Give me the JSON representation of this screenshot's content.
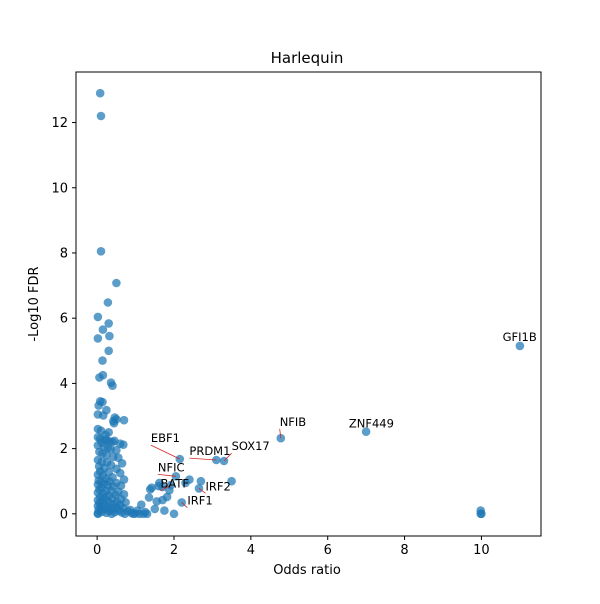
{
  "chart_data": {
    "type": "scatter",
    "title": "Harlequin",
    "xlabel": "Odds ratio",
    "ylabel": "-Log10 FDR",
    "xlim": [
      -0.55,
      11.55
    ],
    "ylim": [
      -0.68,
      13.55
    ],
    "xticks": [
      0,
      2,
      4,
      6,
      8,
      10
    ],
    "yticks": [
      0,
      2,
      4,
      6,
      8,
      10,
      12
    ],
    "grid": false,
    "marker_color": "#1f77b4",
    "annotation_line_color": "#d62728",
    "points": [
      {
        "x": 0.08,
        "y": 12.9
      },
      {
        "x": 0.1,
        "y": 12.2
      },
      {
        "x": 0.1,
        "y": 8.05
      },
      {
        "x": 0.5,
        "y": 7.08
      },
      {
        "x": 0.28,
        "y": 6.48
      },
      {
        "x": 0.02,
        "y": 6.04
      },
      {
        "x": 0.3,
        "y": 5.84
      },
      {
        "x": 0.15,
        "y": 5.65
      },
      {
        "x": 0.32,
        "y": 5.45
      },
      {
        "x": 0.02,
        "y": 5.38
      },
      {
        "x": 0.3,
        "y": 5.0
      },
      {
        "x": 0.14,
        "y": 4.7
      },
      {
        "x": 0.15,
        "y": 4.25
      },
      {
        "x": 0.06,
        "y": 4.18
      },
      {
        "x": 0.36,
        "y": 4.02
      },
      {
        "x": 0.4,
        "y": 3.93
      },
      {
        "x": 0.08,
        "y": 3.45
      },
      {
        "x": 0.14,
        "y": 3.43
      },
      {
        "x": 0.04,
        "y": 3.32
      },
      {
        "x": 0.24,
        "y": 3.18
      },
      {
        "x": 0.02,
        "y": 3.05
      },
      {
        "x": 0.16,
        "y": 3.02
      },
      {
        "x": 0.46,
        "y": 2.95
      },
      {
        "x": 0.5,
        "y": 2.9
      },
      {
        "x": 0.7,
        "y": 2.87
      },
      {
        "x": 0.42,
        "y": 2.84
      },
      {
        "x": 0.44,
        "y": 2.78
      },
      {
        "x": 0.02,
        "y": 2.6
      },
      {
        "x": 0.1,
        "y": 2.55
      },
      {
        "x": 0.3,
        "y": 2.5
      },
      {
        "x": 0.22,
        "y": 2.42
      },
      {
        "x": 0.02,
        "y": 2.35
      },
      {
        "x": 0.08,
        "y": 2.3
      },
      {
        "x": 0.2,
        "y": 2.28
      },
      {
        "x": 0.26,
        "y": 2.25
      },
      {
        "x": 0.33,
        "y": 2.22
      },
      {
        "x": 0.4,
        "y": 2.2
      },
      {
        "x": 0.45,
        "y": 2.24
      },
      {
        "x": 0.12,
        "y": 2.18
      },
      {
        "x": 0.6,
        "y": 2.15
      },
      {
        "x": 0.68,
        "y": 2.12
      },
      {
        "x": 0.02,
        "y": 2.1
      },
      {
        "x": 0.18,
        "y": 2.06
      },
      {
        "x": 0.28,
        "y": 2.02
      },
      {
        "x": 0.35,
        "y": 1.98
      },
      {
        "x": 0.5,
        "y": 1.95
      },
      {
        "x": 0.06,
        "y": 1.9
      },
      {
        "x": 0.14,
        "y": 1.85
      },
      {
        "x": 0.24,
        "y": 1.8
      },
      {
        "x": 0.42,
        "y": 1.75
      },
      {
        "x": 0.55,
        "y": 1.72
      },
      {
        "x": 0.02,
        "y": 1.65
      },
      {
        "x": 0.12,
        "y": 1.6
      },
      {
        "x": 0.26,
        "y": 1.58
      },
      {
        "x": 0.65,
        "y": 1.55
      },
      {
        "x": 0.36,
        "y": 1.5
      },
      {
        "x": 0.05,
        "y": 1.45
      },
      {
        "x": 0.18,
        "y": 1.4
      },
      {
        "x": 0.5,
        "y": 1.38
      },
      {
        "x": 0.08,
        "y": 1.3
      },
      {
        "x": 0.3,
        "y": 1.28
      },
      {
        "x": 0.6,
        "y": 1.25
      },
      {
        "x": 0.02,
        "y": 1.2
      },
      {
        "x": 0.15,
        "y": 1.18
      },
      {
        "x": 0.4,
        "y": 1.12
      },
      {
        "x": 0.22,
        "y": 1.08
      },
      {
        "x": 0.7,
        "y": 1.05
      },
      {
        "x": 0.04,
        "y": 1.02
      },
      {
        "x": 0.32,
        "y": 1.0
      },
      {
        "x": 0.1,
        "y": 0.98
      },
      {
        "x": 0.5,
        "y": 0.95
      },
      {
        "x": 0.18,
        "y": 0.92
      },
      {
        "x": 0.02,
        "y": 0.9
      },
      {
        "x": 0.28,
        "y": 0.88
      },
      {
        "x": 0.62,
        "y": 0.86
      },
      {
        "x": 0.42,
        "y": 0.84
      },
      {
        "x": 0.12,
        "y": 0.8
      },
      {
        "x": 0.06,
        "y": 0.75
      },
      {
        "x": 0.36,
        "y": 0.72
      },
      {
        "x": 0.24,
        "y": 0.7
      },
      {
        "x": 0.55,
        "y": 0.68
      },
      {
        "x": 0.02,
        "y": 0.65
      },
      {
        "x": 0.16,
        "y": 0.62
      },
      {
        "x": 0.7,
        "y": 0.6
      },
      {
        "x": 0.48,
        "y": 0.58
      },
      {
        "x": 0.3,
        "y": 0.55
      },
      {
        "x": 0.08,
        "y": 0.52
      },
      {
        "x": 0.2,
        "y": 0.5
      },
      {
        "x": 0.4,
        "y": 0.48
      },
      {
        "x": 0.62,
        "y": 0.45
      },
      {
        "x": 0.02,
        "y": 0.42
      },
      {
        "x": 0.14,
        "y": 0.4
      },
      {
        "x": 0.26,
        "y": 0.38
      },
      {
        "x": 0.52,
        "y": 0.36
      },
      {
        "x": 0.74,
        "y": 0.35
      },
      {
        "x": 0.06,
        "y": 0.33
      },
      {
        "x": 0.34,
        "y": 0.32
      },
      {
        "x": 0.44,
        "y": 0.3
      },
      {
        "x": 0.18,
        "y": 0.28
      },
      {
        "x": 0.6,
        "y": 0.26
      },
      {
        "x": 0.02,
        "y": 0.24
      },
      {
        "x": 0.1,
        "y": 0.22
      },
      {
        "x": 0.28,
        "y": 0.2
      },
      {
        "x": 0.5,
        "y": 0.19
      },
      {
        "x": 0.68,
        "y": 0.18
      },
      {
        "x": 0.4,
        "y": 0.16
      },
      {
        "x": 0.2,
        "y": 0.14
      },
      {
        "x": 0.04,
        "y": 0.12
      },
      {
        "x": 0.56,
        "y": 0.1
      },
      {
        "x": 0.32,
        "y": 0.09
      },
      {
        "x": 0.8,
        "y": 0.08
      },
      {
        "x": 0.12,
        "y": 0.06
      },
      {
        "x": 0.46,
        "y": 0.05
      },
      {
        "x": 0.64,
        "y": 0.04
      },
      {
        "x": 0.24,
        "y": 0.03
      },
      {
        "x": 0.02,
        "y": 0.02
      },
      {
        "x": 0.9,
        "y": 0.02
      },
      {
        "x": 1.0,
        "y": 0.01
      },
      {
        "x": 1.1,
        "y": 0.0
      },
      {
        "x": 0.02,
        "y": 0.0
      },
      {
        "x": 0.38,
        "y": 0.0
      },
      {
        "x": 0.72,
        "y": 0.0
      },
      {
        "x": 0.95,
        "y": 0.0
      },
      {
        "x": 1.2,
        "y": 0.0
      },
      {
        "x": 1.3,
        "y": 0.0
      },
      {
        "x": 0.86,
        "y": 0.12
      },
      {
        "x": 1.05,
        "y": 0.1
      },
      {
        "x": 1.15,
        "y": 0.28
      },
      {
        "x": 1.25,
        "y": 0.05
      },
      {
        "x": 1.35,
        "y": 0.5
      },
      {
        "x": 1.38,
        "y": 0.75
      },
      {
        "x": 1.42,
        "y": 0.8
      },
      {
        "x": 1.5,
        "y": 0.15
      },
      {
        "x": 1.55,
        "y": 0.38
      },
      {
        "x": 1.6,
        "y": 0.85
      },
      {
        "x": 1.62,
        "y": 0.95
      },
      {
        "x": 1.7,
        "y": 0.82
      },
      {
        "x": 1.7,
        "y": 0.42
      },
      {
        "x": 1.75,
        "y": 0.1
      },
      {
        "x": 1.82,
        "y": 0.52
      },
      {
        "x": 1.88,
        "y": 0.72
      },
      {
        "x": 1.92,
        "y": 0.88
      },
      {
        "x": 2.0,
        "y": 0.0
      },
      {
        "x": 2.05,
        "y": 1.15
      },
      {
        "x": 2.15,
        "y": 1.68
      },
      {
        "x": 2.2,
        "y": 0.35
      },
      {
        "x": 2.3,
        "y": 0.95
      },
      {
        "x": 2.4,
        "y": 1.05
      },
      {
        "x": 2.65,
        "y": 0.78
      },
      {
        "x": 2.7,
        "y": 1.0
      },
      {
        "x": 3.1,
        "y": 1.65
      },
      {
        "x": 3.3,
        "y": 1.62
      },
      {
        "x": 3.5,
        "y": 1.0
      },
      {
        "x": 4.78,
        "y": 2.32
      },
      {
        "x": 7.0,
        "y": 2.52
      },
      {
        "x": 11.0,
        "y": 5.15
      },
      {
        "x": 9.98,
        "y": 0.1
      },
      {
        "x": 9.98,
        "y": 0.0
      },
      {
        "x": 10.0,
        "y": 0.0
      }
    ],
    "annotations": [
      {
        "label": "GFI1B",
        "x": 11.0,
        "y": 5.15,
        "tx": 10.55,
        "ty": 5.3,
        "line": false
      },
      {
        "label": "ZNF449",
        "x": 7.0,
        "y": 2.52,
        "tx": 6.55,
        "ty": 2.65,
        "line": false
      },
      {
        "label": "NFIB",
        "x": 4.78,
        "y": 2.32,
        "tx": 4.75,
        "ty": 2.7,
        "line": true
      },
      {
        "label": "SOX17",
        "x": 3.3,
        "y": 1.62,
        "tx": 3.5,
        "ty": 1.95,
        "line": true
      },
      {
        "label": "PRDM1",
        "x": 3.1,
        "y": 1.65,
        "tx": 2.4,
        "ty": 1.8,
        "line": true
      },
      {
        "label": "EBF1",
        "x": 2.15,
        "y": 1.68,
        "tx": 1.4,
        "ty": 2.2,
        "line": true
      },
      {
        "label": "NFIC",
        "x": 2.05,
        "y": 1.15,
        "tx": 1.58,
        "ty": 1.3,
        "line": true
      },
      {
        "label": "BATF",
        "x": 1.92,
        "y": 0.88,
        "tx": 1.65,
        "ty": 0.8,
        "line": true
      },
      {
        "label": "IRF2",
        "x": 2.65,
        "y": 0.78,
        "tx": 2.82,
        "ty": 0.72,
        "line": true
      },
      {
        "label": "IRF1",
        "x": 2.2,
        "y": 0.35,
        "tx": 2.35,
        "ty": 0.28,
        "line": true
      }
    ]
  }
}
